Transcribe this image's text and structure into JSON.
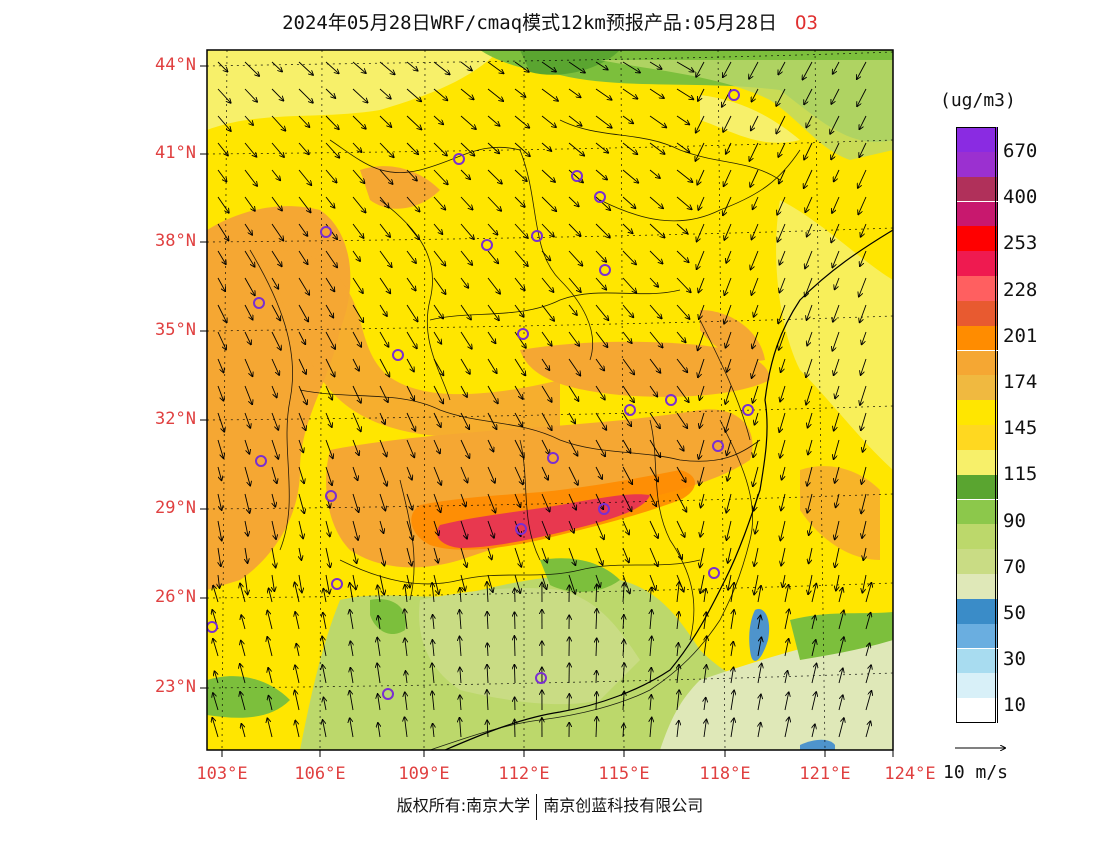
{
  "title": {
    "text": "2024年05月28日WRF/cmaq模式12km预报产品:05月28日",
    "species": "O3"
  },
  "map": {
    "lat_labels": [
      "44°N",
      "41°N",
      "38°N",
      "35°N",
      "32°N",
      "29°N",
      "26°N",
      "23°N"
    ],
    "lon_labels": [
      "103°E",
      "106°E",
      "109°E",
      "112°E",
      "115°E",
      "118°E",
      "121°E",
      "124°E"
    ],
    "lat_range": [
      21,
      44.5
    ],
    "lon_range": [
      103,
      124
    ],
    "station_marker": "circle",
    "colors": {
      "high_band": "#e8384f",
      "orange": "#f5a733",
      "yellow": "#ffe600",
      "light_yellow": "#f7f06a",
      "green": "#7cbf3c",
      "pale_green": "#d6e4a8",
      "sea_blue": "#4e94cc",
      "station_circle": "#7a2fd0"
    }
  },
  "colorbar": {
    "unit": "(ug/m3)",
    "labels": [
      "670",
      "400",
      "253",
      "228",
      "201",
      "174",
      "145",
      "115",
      "90",
      "70",
      "50",
      "30",
      "10"
    ],
    "colors": [
      "#8a2be2",
      "#9b30d0",
      "#b0305a",
      "#c8186e",
      "#ff0000",
      "#ef1a50",
      "#ff5f60",
      "#e85a30",
      "#ff8c00",
      "#f5a733",
      "#f0b940",
      "#ffe600",
      "#ffd820",
      "#f7f06a",
      "#5aa530",
      "#8cc84b",
      "#bcd86b",
      "#c9dc84",
      "#dfe8b8",
      "#3a8cc8",
      "#6aaee0",
      "#a8dcf0",
      "#d8f0f8",
      "#ffffff"
    ]
  },
  "vector_ref": {
    "label": "10 m/s"
  },
  "footer": {
    "left": "版权所有:南京大学",
    "right": "南京创蓝科技有限公司"
  }
}
